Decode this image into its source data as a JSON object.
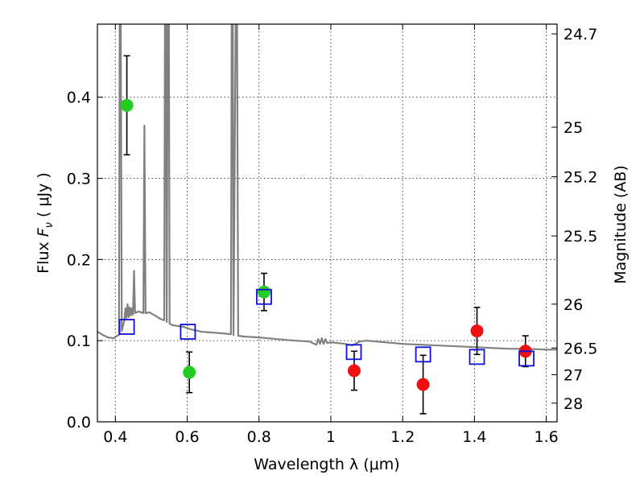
{
  "chart_data": {
    "type": "scatter",
    "xlabel": "Wavelength  λ (μm)",
    "ylabel": "Flux  F_ν  ( μJy )",
    "ylabel_parts": {
      "prefix": "Flux ",
      "symbol": "F",
      "subscript": "ν",
      "suffix": " ( μJy )"
    },
    "ylabel_right": "Magnitude (AB)",
    "xlim": [
      0.35,
      1.63
    ],
    "ylim": [
      0.0,
      0.49
    ],
    "x_ticks": [
      0.4,
      0.6,
      0.8,
      1.0,
      1.2,
      1.4,
      1.6
    ],
    "x_tick_labels": [
      "0.4",
      "0.6",
      "0.8",
      "1",
      "1.2",
      "1.4",
      "1.6"
    ],
    "y_ticks": [
      0.0,
      0.1,
      0.2,
      0.3,
      0.4
    ],
    "y_tick_labels": [
      "0.0",
      "0.1",
      "0.2",
      "0.3",
      "0.4"
    ],
    "right_ticks": [
      {
        "label": "24.7",
        "flux": 0.478
      },
      {
        "label": "25",
        "flux": 0.363
      },
      {
        "label": "25.2",
        "flux": 0.302
      },
      {
        "label": "25.5",
        "flux": 0.229
      },
      {
        "label": "26",
        "flux": 0.145
      },
      {
        "label": "26.5",
        "flux": 0.091
      },
      {
        "label": "27",
        "flux": 0.058
      },
      {
        "label": "28",
        "flux": 0.023
      }
    ],
    "grid": true,
    "series": [
      {
        "name": "green measurements",
        "marker": "circle",
        "color": "#22cc22",
        "points": [
          {
            "x": 0.432,
            "y": 0.39,
            "err": 0.061
          },
          {
            "x": 0.606,
            "y": 0.061,
            "err": 0.025
          },
          {
            "x": 0.814,
            "y": 0.16,
            "err": 0.023
          }
        ]
      },
      {
        "name": "red measurements",
        "marker": "circle",
        "color": "#ee1111",
        "points": [
          {
            "x": 1.065,
            "y": 0.063,
            "err": 0.024
          },
          {
            "x": 1.257,
            "y": 0.046,
            "err": 0.036
          },
          {
            "x": 1.407,
            "y": 0.112,
            "err": 0.029
          },
          {
            "x": 1.542,
            "y": 0.087,
            "err": 0.019
          }
        ]
      },
      {
        "name": "model photometry",
        "marker": "square-open",
        "color": "#1010dd",
        "points": [
          {
            "x": 0.432,
            "y": 0.117
          },
          {
            "x": 0.602,
            "y": 0.111
          },
          {
            "x": 0.814,
            "y": 0.154
          },
          {
            "x": 1.064,
            "y": 0.086
          },
          {
            "x": 1.257,
            "y": 0.083
          },
          {
            "x": 1.407,
            "y": 0.08
          },
          {
            "x": 1.545,
            "y": 0.078
          }
        ]
      }
    ],
    "spectrum": {
      "name": "model spectrum",
      "color": "#808080",
      "points": [
        [
          0.35,
          0.111
        ],
        [
          0.365,
          0.107
        ],
        [
          0.38,
          0.104
        ],
        [
          0.395,
          0.103
        ],
        [
          0.405,
          0.106
        ],
        [
          0.41,
          0.107
        ],
        [
          0.412,
          0.49
        ],
        [
          0.415,
          0.49
        ],
        [
          0.418,
          0.112
        ],
        [
          0.425,
          0.125
        ],
        [
          0.428,
          0.14
        ],
        [
          0.431,
          0.128
        ],
        [
          0.434,
          0.145
        ],
        [
          0.437,
          0.129
        ],
        [
          0.44,
          0.141
        ],
        [
          0.443,
          0.131
        ],
        [
          0.446,
          0.14
        ],
        [
          0.449,
          0.132
        ],
        [
          0.452,
          0.186
        ],
        [
          0.455,
          0.134
        ],
        [
          0.465,
          0.136
        ],
        [
          0.478,
          0.134
        ],
        [
          0.481,
          0.365
        ],
        [
          0.484,
          0.134
        ],
        [
          0.495,
          0.135
        ],
        [
          0.51,
          0.131
        ],
        [
          0.525,
          0.127
        ],
        [
          0.536,
          0.125
        ],
        [
          0.538,
          0.49
        ],
        [
          0.541,
          0.49
        ],
        [
          0.543,
          0.123
        ],
        [
          0.546,
          0.49
        ],
        [
          0.549,
          0.49
        ],
        [
          0.551,
          0.121
        ],
        [
          0.555,
          0.12
        ],
        [
          0.56,
          0.119
        ],
        [
          0.575,
          0.118
        ],
        [
          0.59,
          0.117
        ],
        [
          0.61,
          0.114
        ],
        [
          0.64,
          0.111
        ],
        [
          0.67,
          0.11
        ],
        [
          0.7,
          0.109
        ],
        [
          0.722,
          0.108
        ],
        [
          0.724,
          0.49
        ],
        [
          0.727,
          0.49
        ],
        [
          0.729,
          0.107
        ],
        [
          0.735,
          0.49
        ],
        [
          0.739,
          0.49
        ],
        [
          0.742,
          0.106
        ],
        [
          0.76,
          0.105
        ],
        [
          0.8,
          0.104
        ],
        [
          0.85,
          0.102
        ],
        [
          0.9,
          0.1
        ],
        [
          0.94,
          0.099
        ],
        [
          0.96,
          0.095
        ],
        [
          0.965,
          0.102
        ],
        [
          0.97,
          0.096
        ],
        [
          0.975,
          0.103
        ],
        [
          0.98,
          0.096
        ],
        [
          0.985,
          0.102
        ],
        [
          0.99,
          0.097
        ],
        [
          1.0,
          0.098
        ],
        [
          1.02,
          0.097
        ],
        [
          1.04,
          0.096
        ],
        [
          1.06,
          0.094
        ],
        [
          1.08,
          0.099
        ],
        [
          1.1,
          0.1
        ],
        [
          1.15,
          0.098
        ],
        [
          1.2,
          0.096
        ],
        [
          1.25,
          0.095
        ],
        [
          1.3,
          0.094
        ],
        [
          1.35,
          0.093
        ],
        [
          1.4,
          0.092
        ],
        [
          1.45,
          0.091
        ],
        [
          1.5,
          0.09
        ],
        [
          1.55,
          0.09
        ],
        [
          1.6,
          0.089
        ],
        [
          1.63,
          0.089
        ]
      ]
    }
  }
}
